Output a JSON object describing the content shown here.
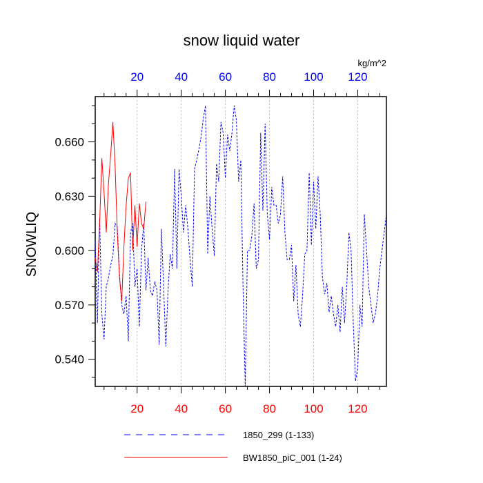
{
  "chart_data": {
    "type": "line",
    "title": "snow liquid water",
    "ylabel": "SNOWLIQ",
    "units": "kg/m^2",
    "xlim": [
      1,
      133
    ],
    "ylim": [
      0.525,
      0.685
    ],
    "x_ticks": [
      20,
      40,
      60,
      80,
      100,
      120
    ],
    "x_tick_labels": [
      "20",
      "40",
      "60",
      "80",
      "100",
      "120"
    ],
    "y_ticks": [
      0.54,
      0.57,
      0.6,
      0.63,
      0.66
    ],
    "y_tick_labels": [
      "0.540",
      "0.570",
      "0.600",
      "0.630",
      "0.660"
    ],
    "colors": {
      "bottom_axis_labels": "#ff0000",
      "top_axis_labels": "#0000ff"
    },
    "legend_position": "bottom",
    "series": [
      {
        "name": "1850_299 (1-133)",
        "color": "#0000ff",
        "dash": "dashed",
        "x_start": 1,
        "values": [
          0.605,
          0.56,
          0.618,
          0.565,
          0.551,
          0.58,
          0.585,
          0.592,
          0.597,
          0.615,
          0.613,
          0.587,
          0.57,
          0.565,
          0.575,
          0.55,
          0.61,
          0.615,
          0.58,
          0.59,
          0.558,
          0.6,
          0.615,
          0.578,
          0.596,
          0.578,
          0.575,
          0.583,
          0.578,
          0.548,
          0.612,
          0.58,
          0.547,
          0.578,
          0.598,
          0.59,
          0.645,
          0.59,
          0.645,
          0.63,
          0.61,
          0.625,
          0.612,
          0.595,
          0.58,
          0.645,
          0.65,
          0.656,
          0.663,
          0.673,
          0.68,
          0.598,
          0.63,
          0.612,
          0.597,
          0.648,
          0.638,
          0.671,
          0.665,
          0.64,
          0.664,
          0.655,
          0.665,
          0.68,
          0.672,
          0.638,
          0.65,
          0.58,
          0.525,
          0.6,
          0.6,
          0.608,
          0.626,
          0.59,
          0.595,
          0.665,
          0.622,
          0.67,
          0.62,
          0.606,
          0.635,
          0.625,
          0.625,
          0.615,
          0.62,
          0.641,
          0.61,
          0.595,
          0.595,
          0.603,
          0.572,
          0.592,
          0.565,
          0.558,
          0.575,
          0.598,
          0.6,
          0.643,
          0.603,
          0.638,
          0.612,
          0.641,
          0.62,
          0.585,
          0.576,
          0.582,
          0.566,
          0.575,
          0.565,
          0.558,
          0.57,
          0.555,
          0.58,
          0.56,
          0.58,
          0.61,
          0.6,
          0.56,
          0.528,
          0.535,
          0.57,
          0.558,
          0.62,
          0.6,
          0.58,
          0.57,
          0.56,
          0.565,
          0.575,
          0.59,
          0.6,
          0.61,
          0.62
        ]
      },
      {
        "name": "BW1850_piC_001 (1-24)",
        "color": "#ff0000",
        "dash": "solid",
        "x_start": 1,
        "values": [
          0.596,
          0.588,
          0.615,
          0.651,
          0.632,
          0.61,
          0.637,
          0.653,
          0.671,
          0.647,
          0.61,
          0.585,
          0.572,
          0.602,
          0.625,
          0.64,
          0.643,
          0.6,
          0.625,
          0.602,
          0.626,
          0.615,
          0.612,
          0.627
        ]
      }
    ]
  }
}
